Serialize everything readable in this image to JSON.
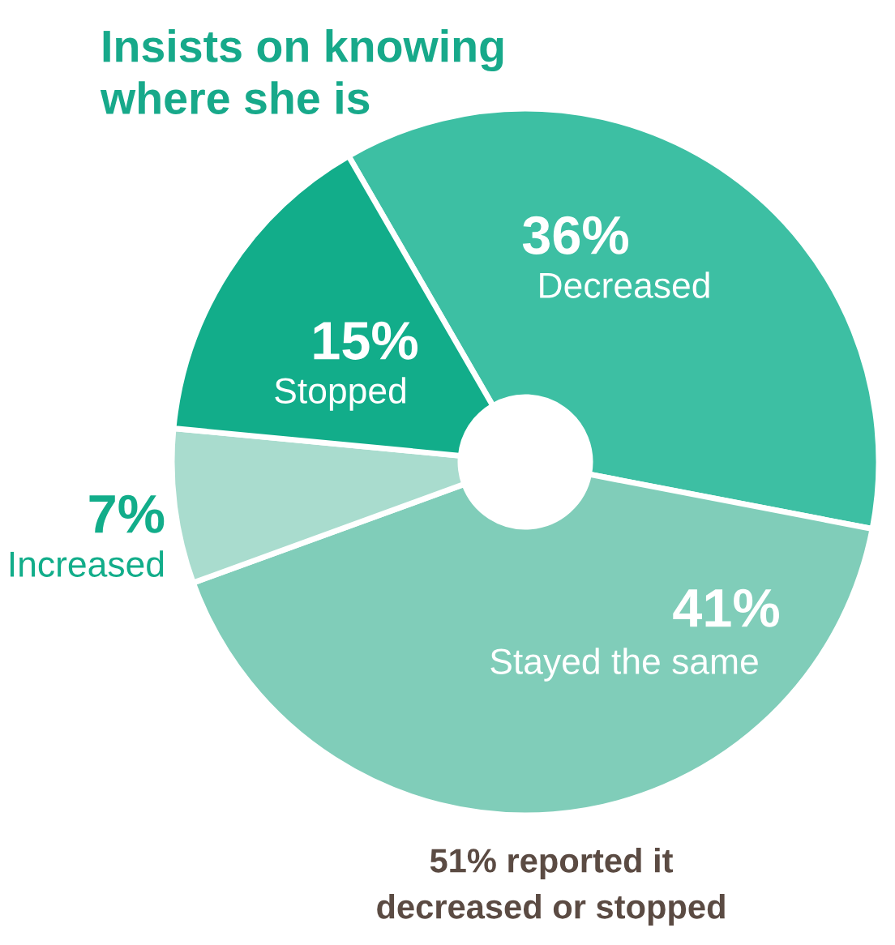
{
  "chart_data": {
    "type": "donut",
    "title": "Insists on knowing\nwhere she is",
    "categories": [
      "Decreased",
      "Stayed the same",
      "Increased",
      "Stopped"
    ],
    "values": [
      36,
      41,
      7,
      15
    ],
    "colors": [
      "#3dbfa3",
      "#80cdb9",
      "#a9dcce",
      "#12ad8a"
    ],
    "annotations": [
      "51% reported it\ndecreased or stopped"
    ],
    "value_labels": [
      "36%",
      "41%",
      "7%",
      "15%"
    ],
    "legend": false
  }
}
